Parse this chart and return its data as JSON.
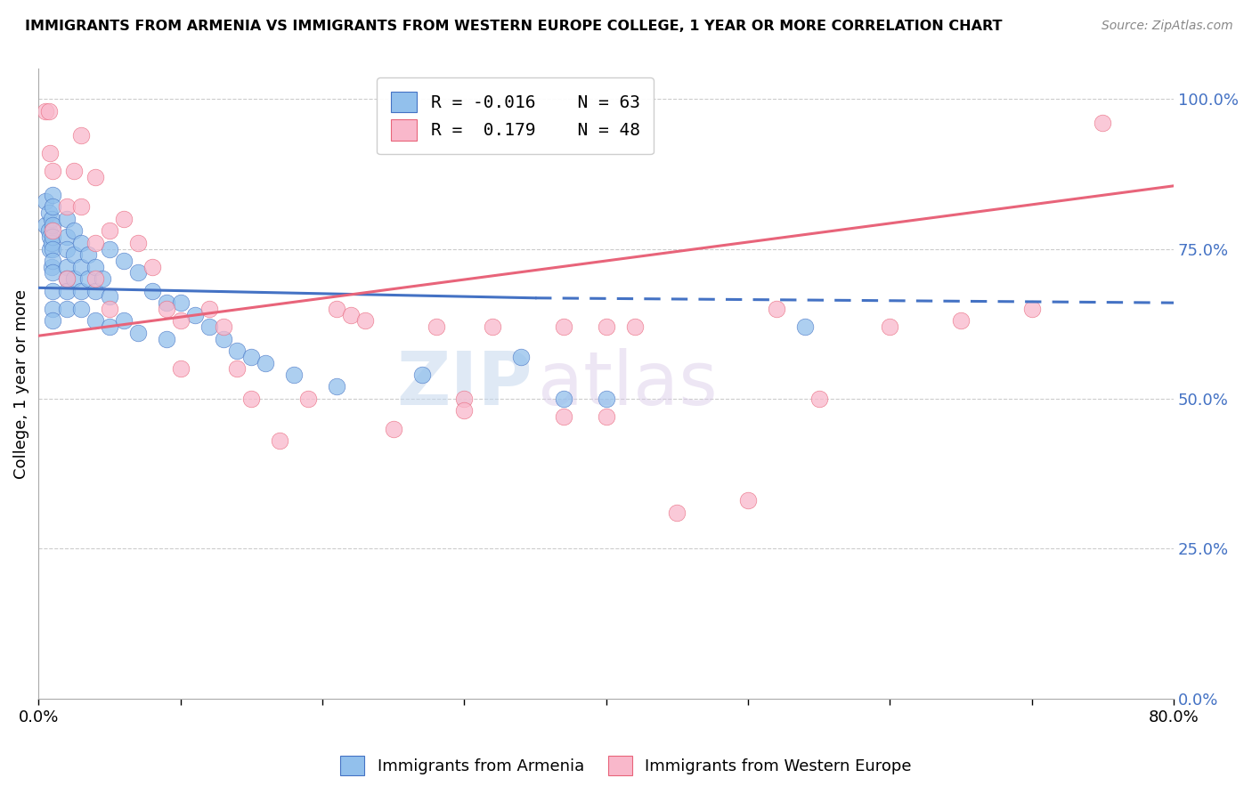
{
  "title": "IMMIGRANTS FROM ARMENIA VS IMMIGRANTS FROM WESTERN EUROPE COLLEGE, 1 YEAR OR MORE CORRELATION CHART",
  "source": "Source: ZipAtlas.com",
  "ylabel": "College, 1 year or more",
  "legend_label_blue": "Immigrants from Armenia",
  "legend_label_pink": "Immigrants from Western Europe",
  "R_blue": -0.016,
  "N_blue": 63,
  "R_pink": 0.179,
  "N_pink": 48,
  "x_min": 0.0,
  "x_max": 0.8,
  "y_min": 0.0,
  "y_max": 1.05,
  "y_ticks": [
    0.0,
    0.25,
    0.5,
    0.75,
    1.0
  ],
  "y_tick_labels": [
    "",
    "",
    "",
    "",
    ""
  ],
  "y_right_labels": [
    "0.0%",
    "25.0%",
    "50.0%",
    "75.0%",
    "100.0%"
  ],
  "x_ticks": [
    0.0,
    0.1,
    0.2,
    0.3,
    0.4,
    0.5,
    0.6,
    0.7,
    0.8
  ],
  "x_tick_labels": [
    "0.0%",
    "",
    "",
    "",
    "",
    "",
    "",
    "",
    "80.0%"
  ],
  "color_blue": "#92C0EC",
  "color_pink": "#F9B8CB",
  "trend_blue": "#4472C4",
  "trend_pink": "#E8647A",
  "watermark_zip": "ZIP",
  "watermark_atlas": "atlas",
  "blue_x": [
    0.005,
    0.005,
    0.007,
    0.007,
    0.008,
    0.008,
    0.009,
    0.009,
    0.009,
    0.01,
    0.01,
    0.01,
    0.01,
    0.01,
    0.01,
    0.01,
    0.01,
    0.01,
    0.01,
    0.02,
    0.02,
    0.02,
    0.02,
    0.02,
    0.02,
    0.02,
    0.025,
    0.025,
    0.025,
    0.03,
    0.03,
    0.03,
    0.03,
    0.035,
    0.035,
    0.04,
    0.04,
    0.04,
    0.045,
    0.05,
    0.05,
    0.05,
    0.06,
    0.06,
    0.07,
    0.07,
    0.08,
    0.09,
    0.09,
    0.1,
    0.11,
    0.12,
    0.13,
    0.14,
    0.15,
    0.16,
    0.18,
    0.21,
    0.27,
    0.34,
    0.37,
    0.4,
    0.54
  ],
  "blue_y": [
    0.79,
    0.83,
    0.81,
    0.78,
    0.77,
    0.75,
    0.8,
    0.76,
    0.72,
    0.84,
    0.82,
    0.79,
    0.77,
    0.75,
    0.73,
    0.71,
    0.68,
    0.65,
    0.63,
    0.8,
    0.77,
    0.75,
    0.72,
    0.7,
    0.68,
    0.65,
    0.78,
    0.74,
    0.7,
    0.76,
    0.72,
    0.68,
    0.65,
    0.74,
    0.7,
    0.72,
    0.68,
    0.63,
    0.7,
    0.75,
    0.67,
    0.62,
    0.73,
    0.63,
    0.71,
    0.61,
    0.68,
    0.66,
    0.6,
    0.66,
    0.64,
    0.62,
    0.6,
    0.58,
    0.57,
    0.56,
    0.54,
    0.52,
    0.54,
    0.57,
    0.5,
    0.5,
    0.62
  ],
  "pink_x": [
    0.005,
    0.007,
    0.008,
    0.01,
    0.01,
    0.02,
    0.02,
    0.025,
    0.03,
    0.03,
    0.04,
    0.04,
    0.04,
    0.05,
    0.05,
    0.06,
    0.07,
    0.08,
    0.09,
    0.1,
    0.1,
    0.12,
    0.13,
    0.14,
    0.15,
    0.17,
    0.19,
    0.21,
    0.22,
    0.23,
    0.25,
    0.28,
    0.3,
    0.3,
    0.32,
    0.37,
    0.37,
    0.4,
    0.4,
    0.42,
    0.45,
    0.5,
    0.52,
    0.55,
    0.6,
    0.65,
    0.7,
    0.75
  ],
  "pink_y": [
    0.98,
    0.98,
    0.91,
    0.88,
    0.78,
    0.82,
    0.7,
    0.88,
    0.94,
    0.82,
    0.87,
    0.76,
    0.7,
    0.78,
    0.65,
    0.8,
    0.76,
    0.72,
    0.65,
    0.63,
    0.55,
    0.65,
    0.62,
    0.55,
    0.5,
    0.43,
    0.5,
    0.65,
    0.64,
    0.63,
    0.45,
    0.62,
    0.5,
    0.48,
    0.62,
    0.47,
    0.62,
    0.47,
    0.62,
    0.62,
    0.31,
    0.33,
    0.65,
    0.5,
    0.62,
    0.63,
    0.65,
    0.96
  ],
  "blue_trend_x0": 0.0,
  "blue_trend_x_solid_end": 0.35,
  "blue_trend_x1": 0.8,
  "blue_trend_y0": 0.685,
  "blue_trend_y_solid_end": 0.668,
  "blue_trend_y1": 0.66,
  "pink_trend_x0": 0.0,
  "pink_trend_x1": 0.8,
  "pink_trend_y0": 0.605,
  "pink_trend_y1": 0.855
}
